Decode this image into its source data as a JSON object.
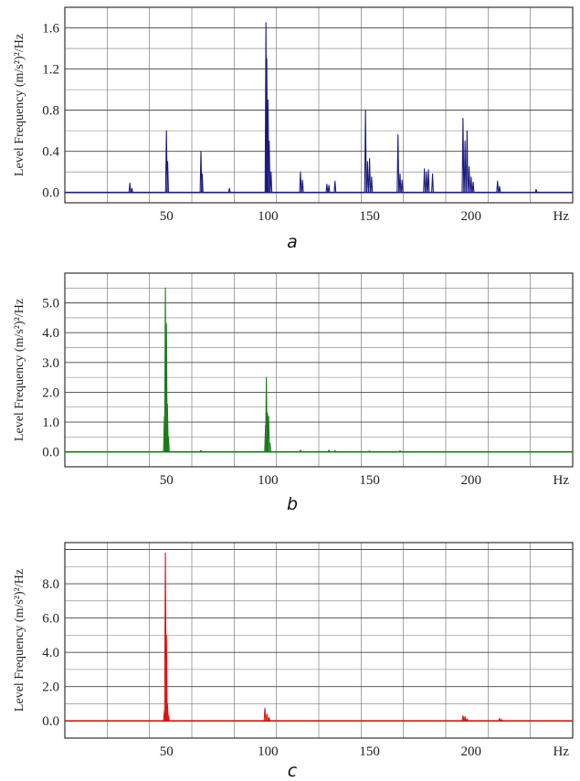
{
  "chart_data": [
    {
      "type": "line",
      "caption": "a",
      "ylabel": "Level Frequency (m/s²)²/Hz",
      "x_unit": "Hz",
      "xlim": [
        0,
        250
      ],
      "ylim": [
        -0.1,
        1.8
      ],
      "x_ticks": [
        50,
        100,
        150,
        200
      ],
      "x_tick_labels": [
        "50",
        "100",
        "150",
        "200"
      ],
      "y_ticks": [
        0.0,
        0.4,
        0.8,
        1.2,
        1.6
      ],
      "y_tick_labels": [
        "0.0",
        "0.4",
        "0.8",
        "1.2",
        "1.6"
      ],
      "grid": true,
      "color": "#1a1a80",
      "series": [
        {
          "peaks": [
            [
              32,
              0.09
            ],
            [
              33,
              0.04
            ],
            [
              50,
              0.6
            ],
            [
              50.6,
              0.3
            ],
            [
              67,
              0.4
            ],
            [
              67.6,
              0.18
            ],
            [
              81,
              0.04
            ],
            [
              99,
              1.65
            ],
            [
              99.4,
              1.3
            ],
            [
              100,
              0.9
            ],
            [
              100.6,
              0.5
            ],
            [
              101.5,
              0.2
            ],
            [
              116,
              0.2
            ],
            [
              117,
              0.12
            ],
            [
              129,
              0.08
            ],
            [
              130,
              0.07
            ],
            [
              133,
              0.11
            ],
            [
              148,
              0.8
            ],
            [
              149,
              0.3
            ],
            [
              150,
              0.33
            ],
            [
              151,
              0.15
            ],
            [
              164,
              0.56
            ],
            [
              165,
              0.18
            ],
            [
              166,
              0.12
            ],
            [
              177,
              0.23
            ],
            [
              178,
              0.2
            ],
            [
              179,
              0.22
            ],
            [
              181,
              0.18
            ],
            [
              196,
              0.72
            ],
            [
              197,
              0.5
            ],
            [
              198,
              0.6
            ],
            [
              199,
              0.25
            ],
            [
              200,
              0.15
            ],
            [
              201,
              0.1
            ],
            [
              213,
              0.11
            ],
            [
              214,
              0.06
            ],
            [
              232,
              0.03
            ]
          ]
        }
      ]
    },
    {
      "type": "line",
      "caption": "b",
      "ylabel": "Level Frequency (m/s²)²/Hz",
      "x_unit": "Hz",
      "xlim": [
        0,
        250
      ],
      "ylim": [
        -0.5,
        6.0
      ],
      "x_ticks": [
        50,
        100,
        150,
        200
      ],
      "x_tick_labels": [
        "50",
        "100",
        "150",
        "200"
      ],
      "y_ticks": [
        0.0,
        1.0,
        2.0,
        3.0,
        4.0,
        5.0
      ],
      "y_tick_labels": [
        "0.0",
        "1.0",
        "2.0",
        "3.0",
        "4.0",
        "5.0"
      ],
      "grid": true,
      "color": "#1a7a1a",
      "series": [
        {
          "peaks": [
            [
              49,
              1.2
            ],
            [
              49.5,
              5.5
            ],
            [
              50,
              4.3
            ],
            [
              50.5,
              1.6
            ],
            [
              51,
              0.5
            ],
            [
              67,
              0.05
            ],
            [
              98.8,
              0.9
            ],
            [
              99.2,
              2.5
            ],
            [
              99.7,
              1.3
            ],
            [
              100.3,
              1.2
            ],
            [
              101,
              0.3
            ],
            [
              116,
              0.06
            ],
            [
              130,
              0.06
            ],
            [
              133,
              0.04
            ],
            [
              150,
              0.03
            ],
            [
              165,
              0.04
            ]
          ]
        }
      ]
    },
    {
      "type": "line",
      "caption": "c",
      "ylabel": "Level Frequency (m/s²)²/Hz",
      "x_unit": "Hz",
      "xlim": [
        0,
        250
      ],
      "ylim": [
        -1.0,
        10.4
      ],
      "x_ticks": [
        50,
        100,
        150,
        200
      ],
      "x_tick_labels": [
        "50",
        "100",
        "150",
        "200"
      ],
      "y_ticks": [
        0.0,
        2.0,
        4.0,
        6.0,
        8.0
      ],
      "y_tick_labels": [
        "0.0",
        "2.0",
        "4.0",
        "6.0",
        "8.0"
      ],
      "grid": true,
      "color": "#dd1111",
      "series": [
        {
          "peaks": [
            [
              49,
              0.6
            ],
            [
              49.5,
              9.8
            ],
            [
              50,
              5.0
            ],
            [
              50.5,
              1.0
            ],
            [
              51,
              0.3
            ],
            [
              98.5,
              0.75
            ],
            [
              99.5,
              0.4
            ],
            [
              100.5,
              0.2
            ],
            [
              196,
              0.3
            ],
            [
              197,
              0.25
            ],
            [
              198,
              0.12
            ],
            [
              214,
              0.15
            ],
            [
              215,
              0.08
            ]
          ]
        }
      ]
    }
  ]
}
